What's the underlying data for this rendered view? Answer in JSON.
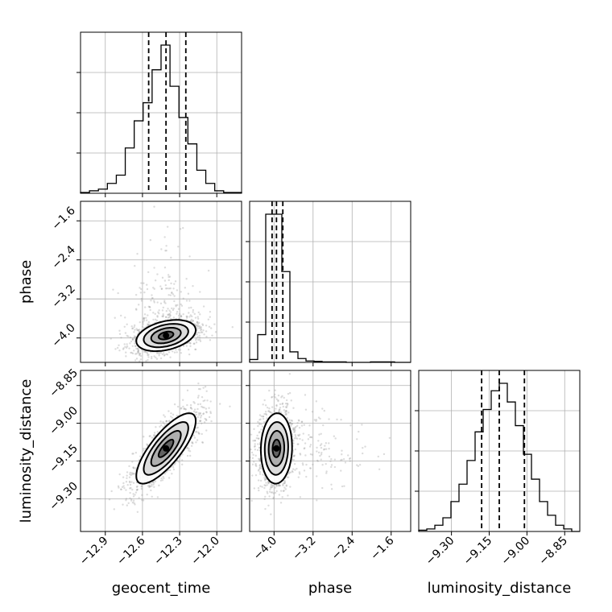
{
  "chart_data": {
    "type": "corner",
    "parameters": [
      "geocent_time",
      "phase",
      "luminosity_distance"
    ],
    "ranges": {
      "geocent_time": [
        -13.1,
        -11.8
      ],
      "phase": [
        -4.5,
        -1.2
      ],
      "luminosity_distance": [
        -9.43,
        -8.79
      ]
    },
    "ticks": {
      "geocent_time": [
        -12.9,
        -12.6,
        -12.3,
        -12.0
      ],
      "phase": [
        -4.0,
        -3.2,
        -2.4,
        -1.6
      ],
      "luminosity_distance": [
        -9.3,
        -9.15,
        -9.0,
        -8.85
      ]
    },
    "tick_labels": {
      "geocent_time": [
        "−12.9",
        "−12.6",
        "−12.3",
        "−12.0"
      ],
      "phase": [
        "−4.0",
        "−3.2",
        "−2.4",
        "−1.6"
      ],
      "luminosity_distance": [
        "−9.30",
        "−9.15",
        "−9.00",
        "−8.85"
      ]
    },
    "quantiles": {
      "geocent_time": [
        -12.55,
        -12.41,
        -12.25
      ],
      "phase": [
        -4.04,
        -3.95,
        -3.82
      ],
      "luminosity_distance": [
        -9.18,
        -9.11,
        -9.01
      ]
    },
    "histograms": {
      "geocent_time": {
        "bins": [
          -13.1,
          -11.8
        ],
        "counts": [
          1,
          3,
          5,
          12,
          22,
          55,
          88,
          110,
          150,
          180,
          130,
          92,
          60,
          28,
          12,
          3,
          1,
          1
        ]
      },
      "phase": {
        "bins": [
          -4.5,
          -1.2
        ],
        "counts": [
          6,
          58,
          310,
          310,
          190,
          22,
          8,
          3,
          2,
          1,
          1,
          1,
          0,
          0,
          0,
          1,
          1,
          1,
          0,
          0
        ]
      },
      "luminosity_distance": {
        "bins": [
          -9.43,
          -8.79
        ],
        "counts": [
          1,
          2,
          5,
          11,
          24,
          38,
          57,
          80,
          98,
          113,
          119,
          104,
          85,
          62,
          42,
          24,
          13,
          5,
          2,
          0
        ]
      }
    },
    "posterior": {
      "means": {
        "geocent_time": -12.41,
        "phase": -3.95,
        "luminosity_distance": -9.1
      },
      "stds": {
        "geocent_time": 0.12,
        "phase": 0.16,
        "luminosity_distance": 0.07
      },
      "correlations": {
        "geocent_time__phase": 0.35,
        "geocent_time__luminosity_distance": 0.78,
        "phase__luminosity_distance": 0.05
      },
      "contour_levels_sigma": [
        0.5,
        1.0,
        1.5,
        2.0
      ]
    },
    "grid": true,
    "legend": "none",
    "colors": {
      "hist": "#000000",
      "points": "#9a9a9a",
      "grid": "#b0b0b0"
    }
  }
}
